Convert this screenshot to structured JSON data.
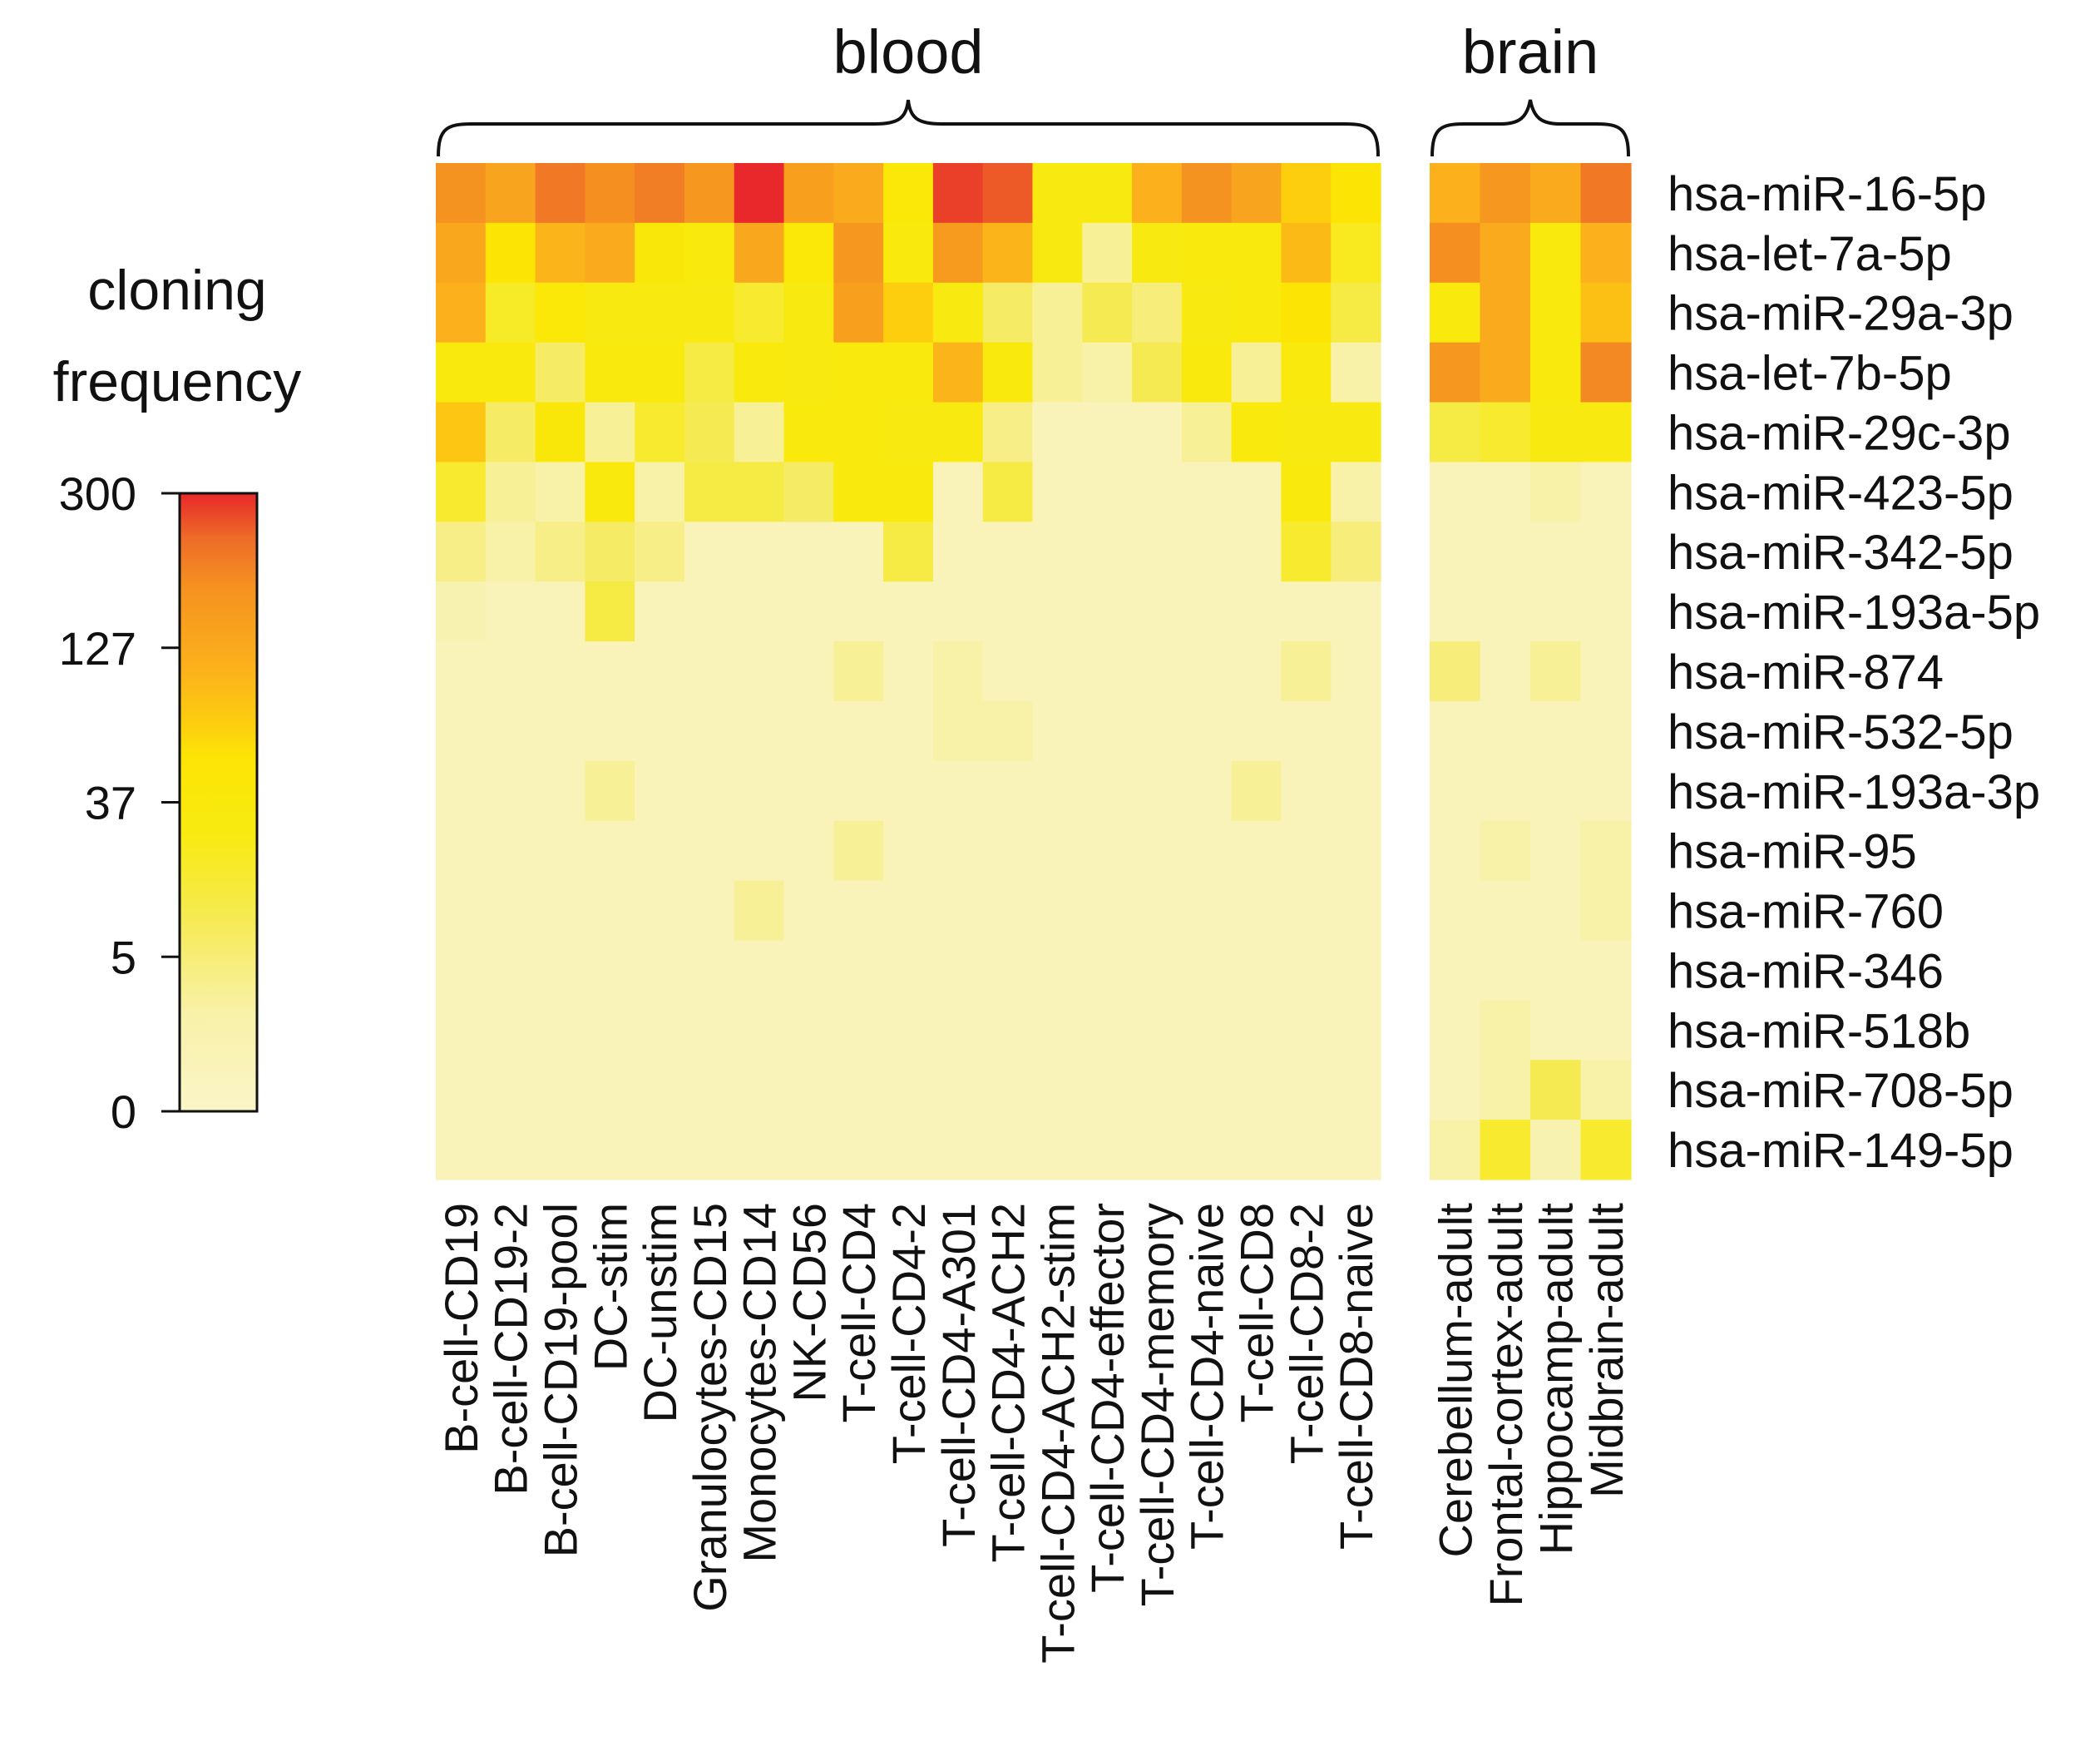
{
  "chart_data": {
    "type": "heatmap",
    "colorbar": {
      "title_lines": [
        "cloning",
        "frequency"
      ],
      "tick_labels": [
        "300",
        "127",
        "37",
        "5",
        "0"
      ],
      "tick_values": [
        300,
        127,
        37,
        5,
        0
      ],
      "scale": "log(1+x)",
      "color_stops": [
        {
          "value": 0,
          "color": "#FAF5C8"
        },
        {
          "value": 1.5,
          "color": "#F8F1A8"
        },
        {
          "value": 5,
          "color": "#F6EA52"
        },
        {
          "value": 12,
          "color": "#F8EA10"
        },
        {
          "value": 25,
          "color": "#FCE505"
        },
        {
          "value": 37,
          "color": "#FDCA10"
        },
        {
          "value": 60,
          "color": "#FBB01C"
        },
        {
          "value": 127,
          "color": "#F59120"
        },
        {
          "value": 200,
          "color": "#EE6A28"
        },
        {
          "value": 300,
          "color": "#E8282A"
        }
      ]
    },
    "groups": [
      {
        "name": "blood",
        "columns": [
          "B-cell-CD19",
          "B-cell-CD19-2",
          "B-cell-CD19-pool",
          "DC-stim",
          "DC-unstim",
          "Granulocytes-CD15",
          "Monocytes-CD14",
          "NK-CD56",
          "T-cell-CD4",
          "T-cell-CD4-2",
          "T-cell-CD4-A301",
          "T-cell-CD4-ACH2",
          "T-cell-CD4-ACH2-stim",
          "T-cell-CD4-effector",
          "T-cell-CD4-memory",
          "T-cell-CD4-naive",
          "T-cell-CD8",
          "T-cell-CD8-2",
          "T-cell-CD8-naive"
        ]
      },
      {
        "name": "brain",
        "columns": [
          "Cerebellum-adult",
          "Frontal-cortex-adult",
          "Hippocamp-adult",
          "Midbrain-adult"
        ]
      }
    ],
    "rows": [
      "hsa-miR-16-5p",
      "hsa-let-7a-5p",
      "hsa-miR-29a-3p",
      "hsa-let-7b-5p",
      "hsa-miR-29c-3p",
      "hsa-miR-423-5p",
      "hsa-miR-342-5p",
      "hsa-miR-193a-5p",
      "hsa-miR-874",
      "hsa-miR-532-5p",
      "hsa-miR-193a-3p",
      "hsa-miR-95",
      "hsa-miR-760",
      "hsa-miR-346",
      "hsa-miR-518b",
      "hsa-miR-708-5p",
      "hsa-miR-149-5p"
    ],
    "values_blood": [
      [
        120,
        80,
        170,
        130,
        160,
        110,
        300,
        90,
        70,
        20,
        260,
        220,
        12,
        12,
        60,
        120,
        80,
        35,
        25
      ],
      [
        75,
        25,
        55,
        70,
        18,
        15,
        75,
        20,
        110,
        15,
        100,
        55,
        12,
        2,
        12,
        15,
        15,
        50,
        10
      ],
      [
        60,
        9,
        20,
        12,
        12,
        12,
        8,
        12,
        90,
        35,
        12,
        4,
        2,
        5,
        3,
        12,
        15,
        25,
        6
      ],
      [
        15,
        15,
        4,
        15,
        15,
        6,
        15,
        12,
        15,
        15,
        55,
        15,
        2,
        1.5,
        5,
        15,
        2,
        15,
        1.5
      ],
      [
        40,
        4,
        18,
        2,
        8,
        5,
        2,
        15,
        15,
        12,
        12,
        2.5,
        0.5,
        0.5,
        0.5,
        2,
        15,
        12,
        12
      ],
      [
        8,
        2,
        1.5,
        15,
        1.5,
        6,
        6,
        4,
        15,
        15,
        0.5,
        6,
        0.5,
        0.5,
        0.5,
        0.5,
        0.5,
        15,
        1.5
      ],
      [
        2.5,
        1.5,
        2.5,
        4,
        2.5,
        0.5,
        0.5,
        0.5,
        0.5,
        6,
        0.5,
        0.5,
        0.5,
        0.5,
        0.5,
        0.5,
        0.5,
        8,
        3
      ],
      [
        1,
        0.5,
        0.5,
        6,
        0.5,
        0.5,
        0.5,
        0.5,
        0.5,
        0.5,
        0.5,
        0.5,
        0.5,
        0.5,
        0.5,
        0.5,
        0.5,
        0.5,
        0.5
      ],
      [
        0.5,
        0.5,
        0.5,
        0.5,
        0.5,
        0.5,
        0.5,
        0.5,
        2,
        0.5,
        1.5,
        0.5,
        0.5,
        0.5,
        0.5,
        0.5,
        0.5,
        2,
        0.5
      ],
      [
        0.5,
        0.5,
        0.5,
        0.5,
        0.5,
        0.5,
        0.5,
        0.5,
        0.5,
        0.5,
        1.5,
        1.5,
        0.5,
        0.5,
        0.5,
        0.5,
        0.5,
        0.5,
        0.5
      ],
      [
        0.5,
        0.5,
        0.5,
        2,
        0.5,
        0.5,
        0.5,
        0.5,
        0.5,
        0.5,
        0.5,
        0.5,
        0.5,
        0.5,
        0.5,
        0.5,
        2,
        0.5,
        0.5
      ],
      [
        0.5,
        0.5,
        0.5,
        0.5,
        0.5,
        0.5,
        0.5,
        0.5,
        2,
        0.5,
        0.5,
        0.5,
        0.5,
        0.5,
        0.5,
        0.5,
        0.5,
        0.5,
        0.5
      ],
      [
        0.5,
        0.5,
        0.5,
        0.5,
        0.5,
        0.5,
        2,
        0.5,
        0.5,
        0.5,
        0.5,
        0.5,
        0.5,
        0.5,
        0.5,
        0.5,
        0.5,
        0.5,
        0.5
      ],
      [
        0.5,
        0.5,
        0.5,
        0.5,
        0.5,
        0.5,
        0.5,
        0.5,
        0.5,
        0.5,
        0.5,
        0.5,
        0.5,
        0.5,
        0.5,
        0.5,
        0.5,
        0.5,
        0.5
      ],
      [
        0.5,
        0.5,
        0.5,
        0.5,
        0.5,
        0.5,
        0.5,
        0.5,
        0.5,
        0.5,
        0.5,
        0.5,
        0.5,
        0.5,
        0.5,
        0.5,
        0.5,
        0.5,
        0.5
      ],
      [
        0.5,
        0.5,
        0.5,
        0.5,
        0.5,
        0.5,
        0.5,
        0.5,
        0.5,
        0.5,
        0.5,
        0.5,
        0.5,
        0.5,
        0.5,
        0.5,
        0.5,
        0.5,
        0.5
      ],
      [
        0.5,
        0.5,
        0.5,
        0.5,
        0.5,
        0.5,
        0.5,
        0.5,
        0.5,
        0.5,
        0.5,
        0.5,
        0.5,
        0.5,
        0.5,
        0.5,
        0.5,
        0.5,
        0.5
      ]
    ],
    "values_brain": [
      [
        60,
        110,
        70,
        170
      ],
      [
        130,
        70,
        15,
        60
      ],
      [
        15,
        70,
        15,
        45
      ],
      [
        110,
        70,
        15,
        140
      ],
      [
        6,
        8,
        12,
        12
      ],
      [
        0.5,
        0.5,
        1.5,
        0.5
      ],
      [
        0.5,
        0.5,
        0.5,
        0.5
      ],
      [
        0.5,
        0.5,
        0.5,
        0.5
      ],
      [
        3,
        0.5,
        2,
        0.5
      ],
      [
        0.5,
        0.5,
        0.5,
        0.5
      ],
      [
        0.5,
        0.5,
        0.5,
        0.5
      ],
      [
        0.5,
        1.5,
        0.5,
        1.5
      ],
      [
        0.5,
        0.5,
        0.5,
        1.5
      ],
      [
        0.5,
        0.5,
        0.5,
        0.5
      ],
      [
        0.5,
        1.5,
        0.5,
        0.5
      ],
      [
        0.5,
        1.5,
        5,
        1.5
      ],
      [
        1.5,
        8,
        1,
        8
      ]
    ]
  }
}
